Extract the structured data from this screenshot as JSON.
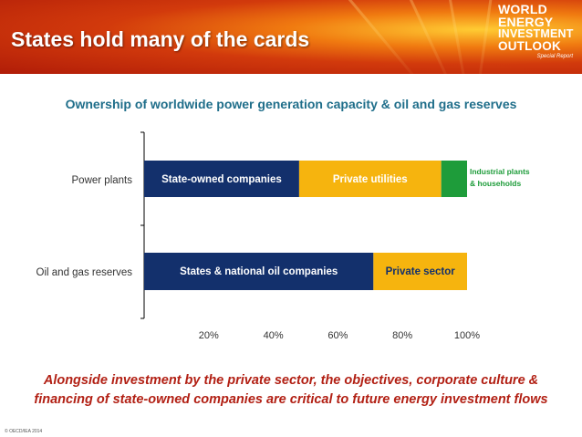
{
  "slide": {
    "title": "States hold many of the cards",
    "logo": {
      "line1": "WORLD",
      "line2": "ENERGY",
      "line3": "INVESTMENT",
      "line4": "OUTLOOK",
      "line5": "Special Report"
    },
    "footer_line1": "Alongside investment by the private sector, the objectives, corporate culture &",
    "footer_line2": "financing of state-owned companies are critical to future energy investment flows",
    "copyright": "© OECD/IEA 2014"
  },
  "colors": {
    "state": "#13306c",
    "private": "#f6b40e",
    "industrial": "#1e9c3a",
    "industrial_label": "#1e9c3a",
    "title": "#1f6e8a",
    "footer": "#b22014"
  },
  "chart_data": {
    "type": "bar",
    "orientation": "horizontal",
    "stacked": true,
    "title": "Ownership of worldwide power generation capacity & oil and gas reserves",
    "categories": [
      "Power plants",
      "Oil and gas reserves"
    ],
    "x_ticks": [
      "20%",
      "40%",
      "60%",
      "80%",
      "100%"
    ],
    "xlim": [
      0,
      100
    ],
    "series": [
      {
        "name": "State-owned companies",
        "values": [
          48,
          null
        ]
      },
      {
        "name": "Private utilities",
        "values": [
          44,
          null
        ]
      },
      {
        "name": "Industrial plants & households",
        "values": [
          8,
          null
        ]
      },
      {
        "name": "States & national oil companies",
        "values": [
          null,
          71
        ]
      },
      {
        "name": "Private sector",
        "values": [
          null,
          29
        ]
      }
    ],
    "annotations": [
      "Industrial plants",
      "& households"
    ]
  }
}
